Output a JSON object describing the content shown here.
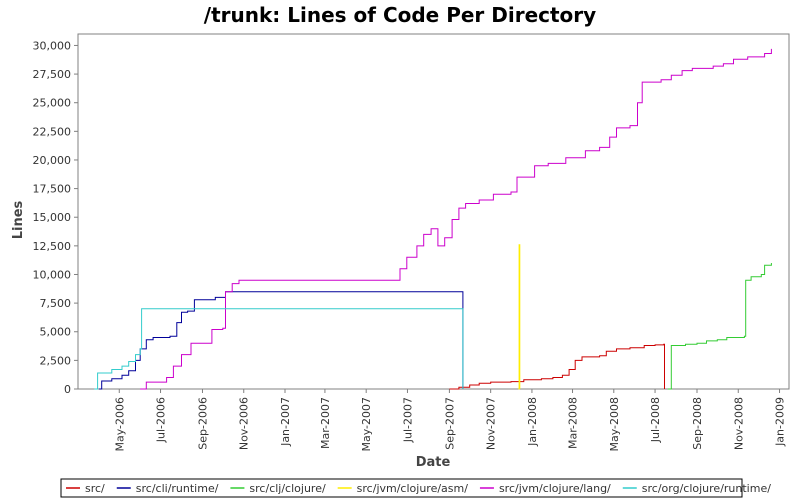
{
  "chart_data": {
    "type": "line",
    "title": "/trunk: Lines of Code Per Directory",
    "xlabel": "Date",
    "ylabel": "Lines",
    "xlim": [
      "2006-03-01",
      "2009-01-15"
    ],
    "ylim": [
      0,
      31000
    ],
    "y_ticks": [
      0,
      2500,
      5000,
      7500,
      10000,
      12500,
      15000,
      17500,
      20000,
      22500,
      25000,
      27500,
      30000
    ],
    "y_tick_labels": [
      "0",
      "2,500",
      "5,000",
      "7,500",
      "10,000",
      "12,500",
      "15,000",
      "17,500",
      "20,000",
      "22,500",
      "25,000",
      "27,500",
      "30,000"
    ],
    "x_ticks": [
      "2006-05-01",
      "2006-07-01",
      "2006-09-01",
      "2006-11-01",
      "2007-01-01",
      "2007-03-01",
      "2007-05-01",
      "2007-07-01",
      "2007-09-01",
      "2007-11-01",
      "2008-01-01",
      "2008-03-01",
      "2008-05-01",
      "2008-07-01",
      "2008-09-01",
      "2008-11-01",
      "2009-01-01"
    ],
    "x_tick_labels": [
      "May-2006",
      "Jul-2006",
      "Sep-2006",
      "Nov-2006",
      "Jan-2007",
      "Mar-2007",
      "May-2007",
      "Jul-2007",
      "Sep-2007",
      "Nov-2007",
      "Jan-2008",
      "Mar-2008",
      "May-2008",
      "Jul-2008",
      "Sep-2008",
      "Nov-2008",
      "Jan-2009"
    ],
    "grid": false,
    "legend_position": "bottom",
    "series": [
      {
        "name": "src/",
        "color": "#cc0000",
        "points": [
          [
            "2007-09-01",
            0
          ],
          [
            "2007-09-15",
            150
          ],
          [
            "2007-10-01",
            350
          ],
          [
            "2007-10-15",
            500
          ],
          [
            "2007-11-01",
            600
          ],
          [
            "2007-12-01",
            650
          ],
          [
            "2007-12-20",
            800
          ],
          [
            "2008-01-15",
            900
          ],
          [
            "2008-02-01",
            1000
          ],
          [
            "2008-02-15",
            1200
          ],
          [
            "2008-02-25",
            1700
          ],
          [
            "2008-03-05",
            2500
          ],
          [
            "2008-03-15",
            2800
          ],
          [
            "2008-04-10",
            2900
          ],
          [
            "2008-04-20",
            3300
          ],
          [
            "2008-05-05",
            3500
          ],
          [
            "2008-05-25",
            3600
          ],
          [
            "2008-06-15",
            3800
          ],
          [
            "2008-07-01",
            3850
          ],
          [
            "2008-07-14",
            3900
          ],
          [
            "2008-07-15",
            0
          ]
        ]
      },
      {
        "name": "src/cli/runtime/",
        "color": "#000099",
        "points": [
          [
            "2006-04-01",
            0
          ],
          [
            "2006-04-05",
            700
          ],
          [
            "2006-04-20",
            900
          ],
          [
            "2006-05-05",
            1200
          ],
          [
            "2006-05-15",
            1600
          ],
          [
            "2006-05-25",
            2500
          ],
          [
            "2006-06-01",
            3500
          ],
          [
            "2006-06-10",
            4300
          ],
          [
            "2006-06-20",
            4500
          ],
          [
            "2006-07-15",
            4600
          ],
          [
            "2006-07-25",
            5800
          ],
          [
            "2006-08-01",
            6700
          ],
          [
            "2006-08-10",
            6800
          ],
          [
            "2006-08-20",
            7800
          ],
          [
            "2006-09-20",
            8000
          ],
          [
            "2006-10-05",
            8500
          ],
          [
            "2007-09-20",
            8500
          ],
          [
            "2007-09-21",
            0
          ]
        ]
      },
      {
        "name": "src/clj/clojure/",
        "color": "#33cc33",
        "points": [
          [
            "2008-07-20",
            0
          ],
          [
            "2008-07-25",
            3800
          ],
          [
            "2008-08-15",
            3900
          ],
          [
            "2008-09-01",
            4000
          ],
          [
            "2008-09-15",
            4200
          ],
          [
            "2008-10-01",
            4300
          ],
          [
            "2008-10-15",
            4500
          ],
          [
            "2008-11-10",
            4600
          ],
          [
            "2008-11-12",
            9500
          ],
          [
            "2008-11-20",
            9800
          ],
          [
            "2008-12-05",
            10000
          ],
          [
            "2008-12-10",
            10800
          ],
          [
            "2008-12-20",
            11000
          ]
        ]
      },
      {
        "name": "src/jvm/clojure/asm/",
        "color": "#ffee00",
        "points": [
          [
            "2007-12-12",
            0
          ],
          [
            "2007-12-13",
            12600
          ],
          [
            "2007-12-14",
            0
          ]
        ]
      },
      {
        "name": "src/jvm/clojure/lang/",
        "color": "#cc00cc",
        "points": [
          [
            "2006-06-01",
            0
          ],
          [
            "2006-06-10",
            600
          ],
          [
            "2006-07-10",
            1000
          ],
          [
            "2006-07-20",
            2000
          ],
          [
            "2006-08-01",
            3000
          ],
          [
            "2006-08-15",
            4000
          ],
          [
            "2006-09-15",
            5200
          ],
          [
            "2006-10-01",
            5300
          ],
          [
            "2006-10-05",
            8500
          ],
          [
            "2006-10-15",
            9200
          ],
          [
            "2006-10-25",
            9500
          ],
          [
            "2007-06-10",
            9500
          ],
          [
            "2007-06-20",
            10500
          ],
          [
            "2007-06-30",
            11500
          ],
          [
            "2007-07-15",
            12500
          ],
          [
            "2007-07-25",
            13500
          ],
          [
            "2007-08-05",
            14000
          ],
          [
            "2007-08-15",
            12500
          ],
          [
            "2007-08-25",
            13200
          ],
          [
            "2007-09-05",
            14800
          ],
          [
            "2007-09-15",
            15800
          ],
          [
            "2007-09-25",
            16200
          ],
          [
            "2007-10-15",
            16500
          ],
          [
            "2007-11-05",
            17000
          ],
          [
            "2007-12-01",
            17200
          ],
          [
            "2007-12-10",
            18500
          ],
          [
            "2008-01-05",
            19500
          ],
          [
            "2008-01-25",
            19700
          ],
          [
            "2008-02-20",
            20200
          ],
          [
            "2008-03-20",
            20800
          ],
          [
            "2008-04-10",
            21100
          ],
          [
            "2008-04-25",
            22000
          ],
          [
            "2008-05-05",
            22800
          ],
          [
            "2008-05-25",
            23000
          ],
          [
            "2008-06-05",
            25000
          ],
          [
            "2008-06-12",
            26800
          ],
          [
            "2008-07-10",
            27000
          ],
          [
            "2008-07-25",
            27400
          ],
          [
            "2008-08-10",
            27800
          ],
          [
            "2008-08-25",
            28000
          ],
          [
            "2008-09-25",
            28200
          ],
          [
            "2008-10-10",
            28400
          ],
          [
            "2008-10-25",
            28800
          ],
          [
            "2008-11-15",
            29000
          ],
          [
            "2008-12-10",
            29300
          ],
          [
            "2008-12-20",
            29700
          ]
        ]
      },
      {
        "name": "src/org/clojure/runtime/",
        "color": "#33cccc",
        "points": [
          [
            "2006-03-25",
            0
          ],
          [
            "2006-03-30",
            1400
          ],
          [
            "2006-04-20",
            1700
          ],
          [
            "2006-05-05",
            2000
          ],
          [
            "2006-05-15",
            2400
          ],
          [
            "2006-05-25",
            3000
          ],
          [
            "2006-06-01",
            3500
          ],
          [
            "2006-06-03",
            7000
          ],
          [
            "2007-09-20",
            7000
          ],
          [
            "2007-09-21",
            0
          ]
        ]
      }
    ]
  }
}
